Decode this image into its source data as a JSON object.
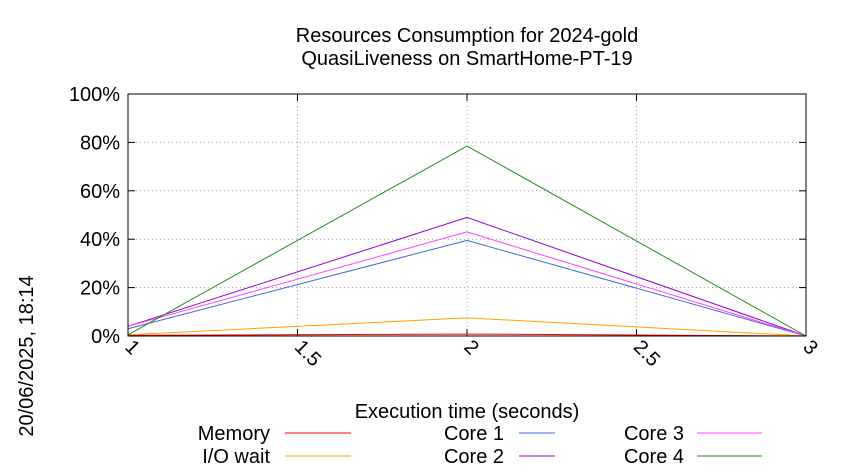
{
  "timestamp": "20/06/2025, 18:14",
  "chart_data": {
    "type": "line",
    "title": "Resources Consumption for 2024-gold",
    "subtitle": "QuasiLiveness on SmartHome-PT-19",
    "xlabel": "Execution time (seconds)",
    "ylabel": "",
    "x": [
      1,
      2,
      3
    ],
    "xticks": [
      "1",
      "1.5",
      "2",
      "2.5",
      "3"
    ],
    "xtick_values": [
      1,
      1.5,
      2,
      2.5,
      3
    ],
    "yticks": [
      "0%",
      "20%",
      "40%",
      "60%",
      "80%",
      "100%"
    ],
    "ytick_values": [
      0,
      20,
      40,
      60,
      80,
      100
    ],
    "xlim": [
      1,
      3
    ],
    "ylim": [
      0,
      100
    ],
    "grid": true,
    "legend_position": "bottom",
    "series": [
      {
        "name": "Memory",
        "color": "#ff0000",
        "values": [
          0.3,
          0.8,
          0
        ]
      },
      {
        "name": "I/O wait",
        "color": "#ffa500",
        "values": [
          0.5,
          7.5,
          0
        ]
      },
      {
        "name": "Core 1",
        "color": "#4169e1",
        "values": [
          3,
          39.5,
          0
        ]
      },
      {
        "name": "Core 2",
        "color": "#9400d3",
        "values": [
          4,
          49,
          0
        ]
      },
      {
        "name": "Core 3",
        "color": "#ff44ff",
        "values": [
          4,
          43,
          0
        ]
      },
      {
        "name": "Core 4",
        "color": "#228b22",
        "values": [
          0.5,
          78.5,
          0
        ]
      }
    ]
  }
}
